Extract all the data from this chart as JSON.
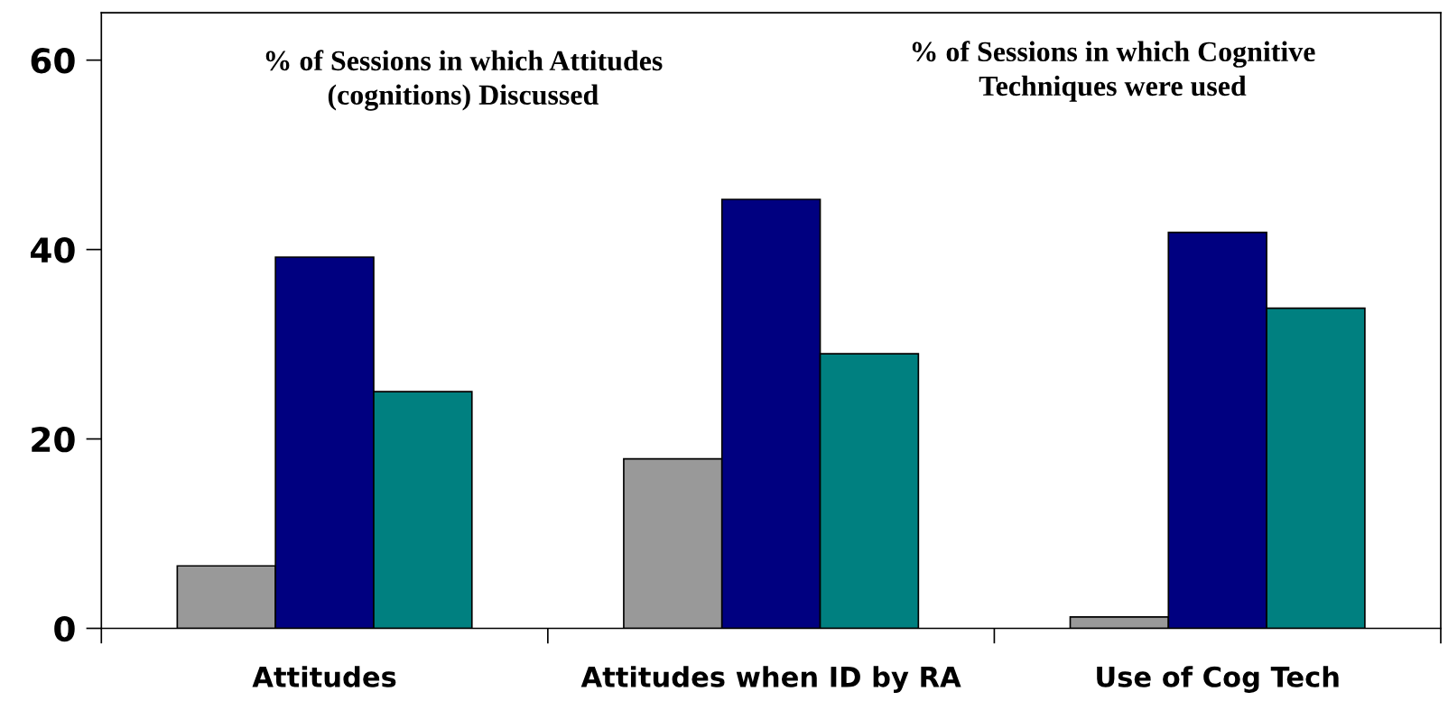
{
  "chart_data": {
    "type": "bar",
    "categories": [
      "Attitudes",
      "Attitudes when ID by RA",
      "Use of Cog Tech"
    ],
    "series": [
      {
        "color": "#999999",
        "values": [
          6.6,
          17.9,
          1.2
        ]
      },
      {
        "color": "#000080",
        "values": [
          39.2,
          45.3,
          41.8
        ]
      },
      {
        "color": "#008080",
        "values": [
          25.0,
          29.0,
          33.8
        ]
      }
    ],
    "ylim": [
      0,
      65
    ],
    "yticks": [
      0,
      20,
      40,
      60
    ],
    "grid": false,
    "legend": false,
    "annotations": [
      "% of Sessions in which Attitudes\n(cognitions) Discussed",
      "% of Sessions in which Cognitive\nTechniques were used"
    ]
  }
}
